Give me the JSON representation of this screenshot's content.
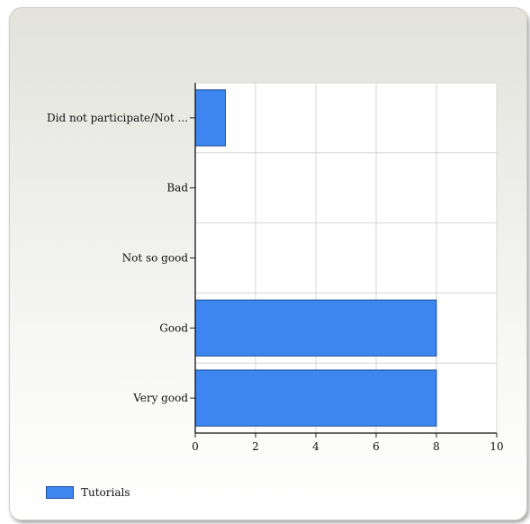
{
  "chart_data": {
    "type": "bar",
    "orientation": "horizontal",
    "categories": [
      "Did not participate/Not ...",
      "Bad",
      "Not so good",
      "Good",
      "Very good"
    ],
    "series": [
      {
        "name": "Tutorials",
        "values": [
          1,
          0,
          0,
          8,
          8
        ],
        "color": "#3d86f0"
      }
    ],
    "xlim": [
      0,
      10
    ],
    "xticks": [
      "0",
      "2",
      "4",
      "6",
      "8",
      "10"
    ],
    "grid": true,
    "legend": "bottom-left"
  }
}
